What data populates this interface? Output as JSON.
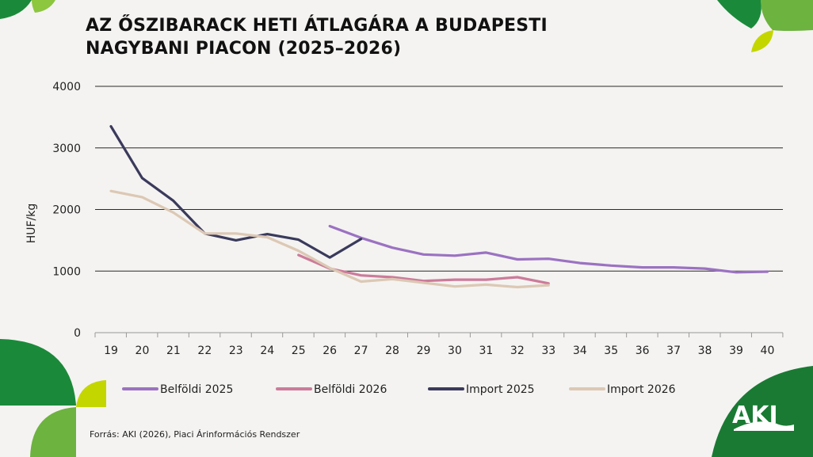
{
  "title_lines": [
    "AZ ŐSZIBARACK HETI ÁTLAGÁRA A BUDAPESTI",
    "NAGYBANI PIACON (2025–2026)"
  ],
  "source": "Forrás: AKI (2026), Piaci Árinformációs Rendszer",
  "logo_text": "AKI",
  "colors": {
    "background": "#f4f3f1",
    "dark_green": "#1a8a3a",
    "light_green": "#8dc63f",
    "grid": "#333333"
  },
  "chart_data": {
    "type": "line",
    "ylabel": "HUF/kg",
    "xlabel": "",
    "ylim": [
      0,
      4000
    ],
    "yticks": [
      0,
      1000,
      2000,
      3000,
      4000
    ],
    "categories": [
      "19",
      "20",
      "21",
      "22",
      "23",
      "24",
      "25",
      "26",
      "27",
      "28",
      "29",
      "30",
      "31",
      "32",
      "33",
      "34",
      "35",
      "36",
      "37",
      "38",
      "39",
      "40"
    ],
    "grid": "horizontal",
    "legend_position": "bottom",
    "series": [
      {
        "name": "Belföldi 2025",
        "color": "#9b72c2",
        "points": [
          [
            26,
            1730
          ],
          [
            27,
            1540
          ],
          [
            28,
            1380
          ],
          [
            29,
            1270
          ],
          [
            30,
            1250
          ],
          [
            31,
            1300
          ],
          [
            32,
            1190
          ],
          [
            33,
            1200
          ],
          [
            34,
            1130
          ],
          [
            35,
            1090
          ],
          [
            36,
            1060
          ],
          [
            37,
            1060
          ],
          [
            38,
            1040
          ],
          [
            39,
            980
          ],
          [
            40,
            990
          ]
        ]
      },
      {
        "name": "Belföldi 2026",
        "color": "#cc7b9a",
        "points": [
          [
            25,
            1260
          ],
          [
            26,
            1040
          ],
          [
            27,
            930
          ],
          [
            28,
            900
          ],
          [
            29,
            840
          ],
          [
            30,
            860
          ],
          [
            31,
            860
          ],
          [
            32,
            900
          ],
          [
            33,
            800
          ]
        ]
      },
      {
        "name": "Import 2025",
        "color": "#3a3a5c",
        "points": [
          [
            19,
            3350
          ],
          [
            20,
            2510
          ],
          [
            21,
            2140
          ],
          [
            22,
            1610
          ],
          [
            23,
            1500
          ],
          [
            24,
            1600
          ],
          [
            25,
            1510
          ],
          [
            26,
            1220
          ],
          [
            27,
            1520
          ]
        ]
      },
      {
        "name": "Import 2026",
        "color": "#dcc8b4",
        "points": [
          [
            19,
            2300
          ],
          [
            20,
            2200
          ],
          [
            21,
            1950
          ],
          [
            22,
            1610
          ],
          [
            23,
            1610
          ],
          [
            24,
            1550
          ],
          [
            25,
            1330
          ],
          [
            26,
            1050
          ],
          [
            27,
            830
          ],
          [
            28,
            870
          ],
          [
            29,
            810
          ],
          [
            30,
            750
          ],
          [
            31,
            780
          ],
          [
            32,
            740
          ],
          [
            33,
            770
          ]
        ]
      }
    ]
  }
}
